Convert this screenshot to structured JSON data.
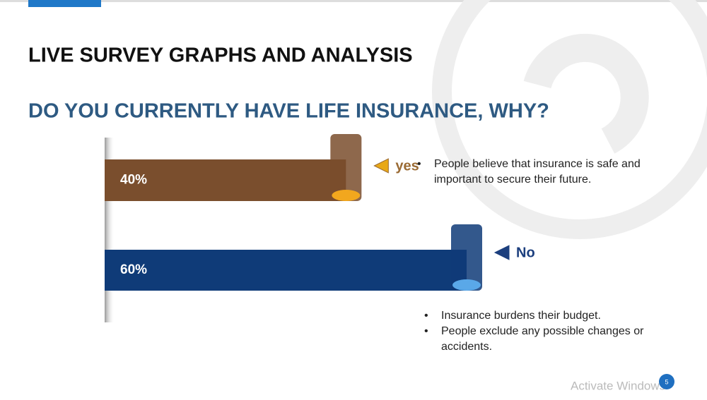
{
  "slide": {
    "heading": "LIVE SURVEY GRAPHS AND ANALYSIS",
    "page_number": "5",
    "watermark": "Activate Windows"
  },
  "chart_data": {
    "type": "bar",
    "orientation": "horizontal",
    "title": "DO YOU CURRENTLY HAVE LIFE INSURANCE, WHY?",
    "categories": [
      "yes",
      "No"
    ],
    "values": [
      40,
      60
    ],
    "value_labels": [
      "40%",
      "60%"
    ],
    "colors": [
      "#7a4e2d",
      "#0f3b78"
    ],
    "label_colors": [
      "#9a6a33",
      "#1c3f7e"
    ],
    "notes": [
      [
        "People believe that insurance is safe and important to secure their future."
      ],
      [
        "Insurance burdens their budget.",
        "People exclude any possible changes or accidents."
      ]
    ]
  }
}
